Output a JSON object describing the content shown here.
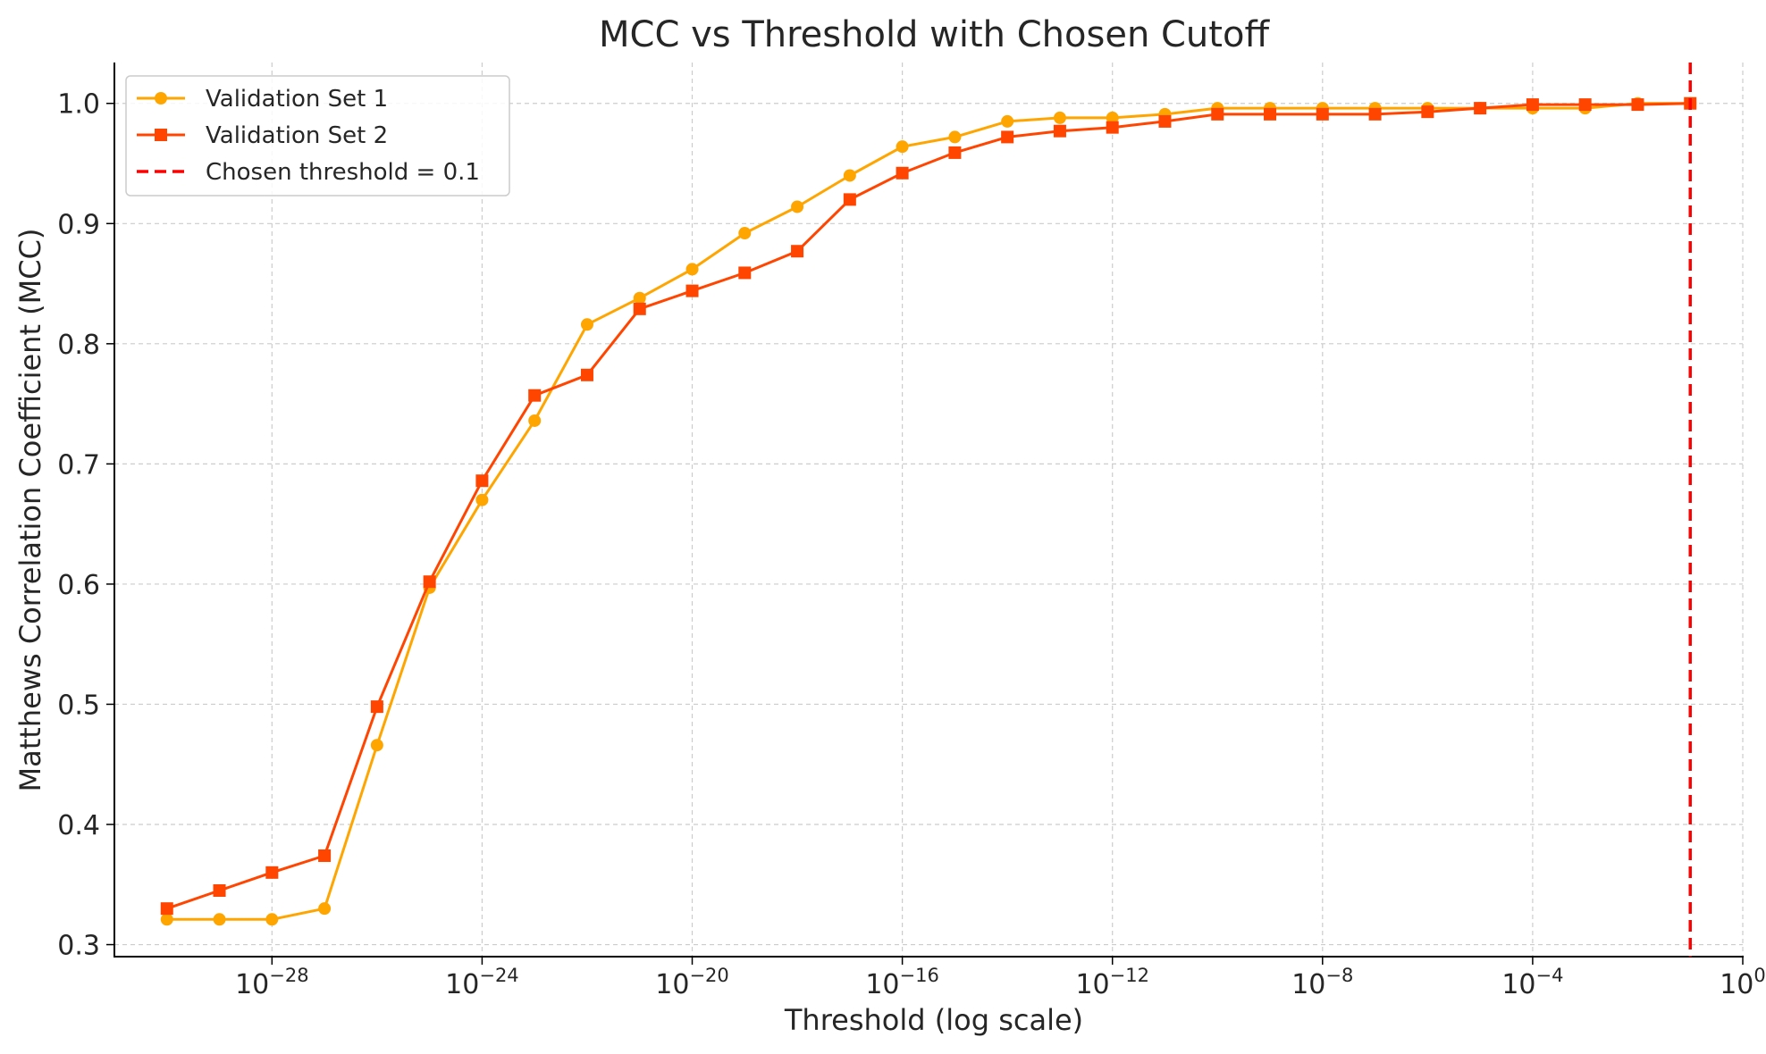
{
  "chart_data": {
    "type": "line",
    "title": "MCC vs Threshold with Chosen Cutoff",
    "xlabel": "Threshold (log scale)",
    "ylabel": "Matthews Correlation Coefficient (MCC)",
    "xscale": "log",
    "xlim": [
      "1e-31",
      "1e0"
    ],
    "ylim": [
      0.29,
      1.034
    ],
    "yticks": [
      "0.3",
      "0.4",
      "0.5",
      "0.6",
      "0.7",
      "0.8",
      "0.9",
      "1.0"
    ],
    "xticks": [
      {
        "base": "10",
        "exp": "−28"
      },
      {
        "base": "10",
        "exp": "−24"
      },
      {
        "base": "10",
        "exp": "−20"
      },
      {
        "base": "10",
        "exp": "−16"
      },
      {
        "base": "10",
        "exp": "−12"
      },
      {
        "base": "10",
        "exp": "−8"
      },
      {
        "base": "10",
        "exp": "−4"
      },
      {
        "base": "10",
        "exp": "0"
      }
    ],
    "grid": true,
    "legend_position": "top-left",
    "x": [
      "1e-30",
      "1e-29",
      "1e-28",
      "1e-27",
      "1e-26",
      "1e-25",
      "1e-24",
      "1e-23",
      "1e-22",
      "1e-21",
      "1e-20",
      "1e-19",
      "1e-18",
      "1e-17",
      "1e-16",
      "1e-15",
      "1e-14",
      "1e-13",
      "1e-12",
      "1e-11",
      "1e-10",
      "1e-9",
      "1e-8",
      "1e-7",
      "1e-6",
      "1e-5",
      "1e-4",
      "1e-3",
      "1e-2",
      "1e-1"
    ],
    "series": [
      {
        "name": "Validation Set 1",
        "color": "#ffa500",
        "marker": "circle",
        "values": [
          0.321,
          0.321,
          0.321,
          0.33,
          0.466,
          0.597,
          0.67,
          0.736,
          0.816,
          0.838,
          0.862,
          0.892,
          0.914,
          0.94,
          0.964,
          0.972,
          0.985,
          0.988,
          0.988,
          0.991,
          0.996,
          0.996,
          0.996,
          0.996,
          0.996,
          0.996,
          0.996,
          0.996,
          1.0,
          1.0
        ]
      },
      {
        "name": "Validation Set 2",
        "color": "#ff4500",
        "marker": "square",
        "values": [
          0.33,
          0.345,
          0.36,
          0.374,
          0.498,
          0.602,
          0.686,
          0.757,
          0.774,
          0.829,
          0.844,
          0.859,
          0.877,
          0.92,
          0.942,
          0.959,
          0.972,
          0.977,
          0.98,
          0.985,
          0.991,
          0.991,
          0.991,
          0.991,
          0.993,
          0.996,
          0.999,
          0.999,
          0.999,
          1.0
        ]
      }
    ],
    "cutoff": {
      "label": "Chosen threshold = 0.1",
      "value": "1e-1",
      "color": "#ff0000",
      "style": "dashed"
    }
  }
}
